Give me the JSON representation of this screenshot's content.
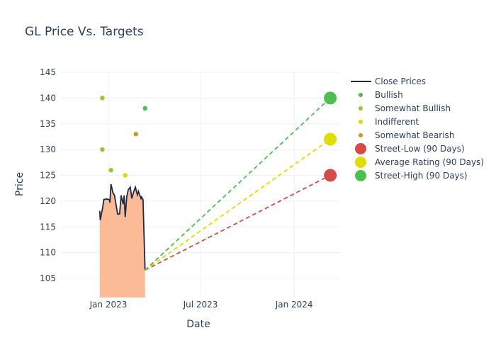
{
  "chart_data": {
    "type": "line",
    "title": "GL Price Vs. Targets",
    "xlabel": "Date",
    "ylabel": "Price",
    "ylim": [
      101.3,
      145
    ],
    "xlim": [
      "2022-09-28",
      "2024-03-10"
    ],
    "yticks": [
      105,
      110,
      115,
      120,
      125,
      130,
      135,
      140,
      145
    ],
    "xticks": [
      {
        "date": "2023-01-01",
        "label": "Jan 2023"
      },
      {
        "date": "2023-07-01",
        "label": "Jul 2023"
      },
      {
        "date": "2024-01-01",
        "label": "Jan 2024"
      }
    ],
    "grid": true,
    "legend_placement": "top-right",
    "close_prices": {
      "name": "Close Prices",
      "color": "#1f2a44",
      "fill": "#fbbb96",
      "x": [
        "2022-12-15",
        "2022-12-16",
        "2022-12-21",
        "2022-12-23",
        "2022-12-28",
        "2023-01-03",
        "2023-01-04",
        "2023-01-06",
        "2023-01-10",
        "2023-01-13",
        "2023-01-19",
        "2023-01-23",
        "2023-01-26",
        "2023-01-30",
        "2023-02-01",
        "2023-02-03",
        "2023-02-06",
        "2023-02-09",
        "2023-02-13",
        "2023-02-16",
        "2023-02-20",
        "2023-02-23",
        "2023-02-27",
        "2023-03-01",
        "2023-03-06",
        "2023-03-07",
        "2023-03-10",
        "2023-03-14"
      ],
      "y": [
        118.1,
        116.3,
        118.9,
        120.3,
        120.4,
        120.3,
        119.7,
        123.3,
        121.6,
        121.1,
        117.5,
        117.5,
        121.1,
        119.4,
        121.1,
        116.9,
        120.8,
        122.2,
        122.7,
        120.5,
        121.9,
        122.7,
        121.2,
        121.9,
        120.5,
        120.8,
        120.3,
        106.6
      ]
    },
    "ratings": [
      {
        "name": "Bullish",
        "color": "#4cbf4f",
        "points": [
          {
            "x": "2023-03-14",
            "y": 138
          }
        ]
      },
      {
        "name": "Somewhat Bullish",
        "color": "#93c92c",
        "points": [
          {
            "x": "2022-12-20",
            "y": 140
          },
          {
            "x": "2022-12-20",
            "y": 130
          },
          {
            "x": "2023-01-06",
            "y": 126
          }
        ]
      },
      {
        "name": "Indifferent",
        "color": "#e0d900",
        "points": [
          {
            "x": "2023-02-03",
            "y": 125
          }
        ]
      },
      {
        "name": "Somewhat Bearish",
        "color": "#d9901e",
        "points": [
          {
            "x": "2023-02-24",
            "y": 133
          }
        ]
      }
    ],
    "targets": [
      {
        "name": "Street-Low (90 Days)",
        "color": "#d64a4a",
        "start": {
          "x": "2023-03-14",
          "y": 106.6
        },
        "end": {
          "x": "2024-03-12",
          "y": 125
        }
      },
      {
        "name": "Average Rating (90 Days)",
        "color": "#e0dd00",
        "start": {
          "x": "2023-03-14",
          "y": 106.6
        },
        "end": {
          "x": "2024-03-12",
          "y": 132
        }
      },
      {
        "name": "Street-High (90 Days)",
        "color": "#4cbf4f",
        "start": {
          "x": "2023-03-14",
          "y": 106.6
        },
        "end": {
          "x": "2024-03-12",
          "y": 140
        }
      }
    ]
  }
}
